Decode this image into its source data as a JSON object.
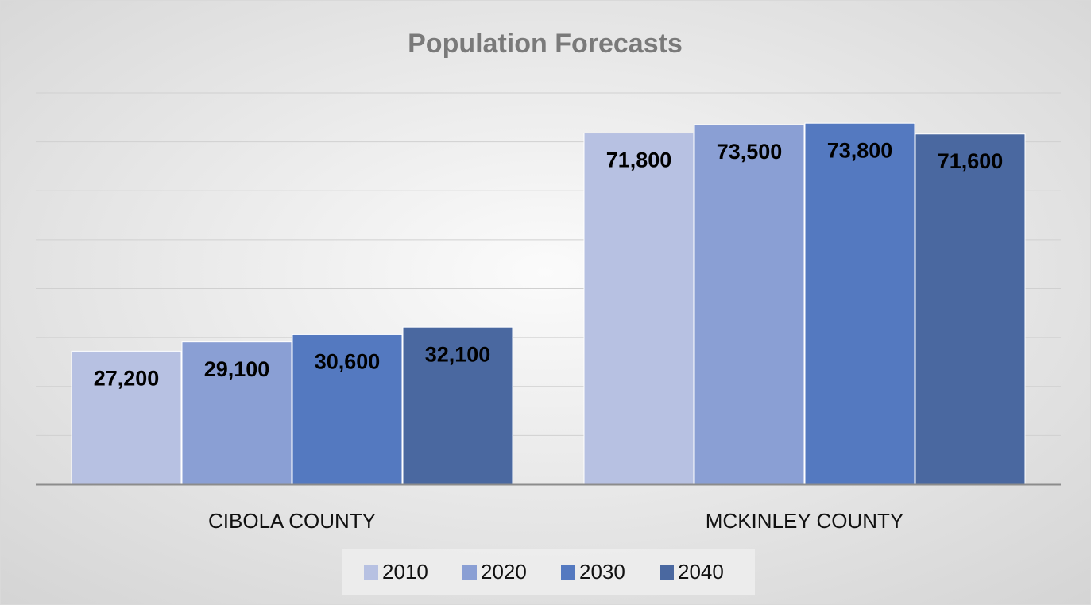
{
  "chart_data": {
    "type": "bar",
    "title": "Population Forecasts",
    "categories": [
      "CIBOLA COUNTY",
      "MCKINLEY COUNTY"
    ],
    "series": [
      {
        "name": "2010",
        "color": "#b7c1e2",
        "values": [
          27200,
          71800
        ],
        "value_labels": [
          "27,200",
          "71,800"
        ]
      },
      {
        "name": "2020",
        "color": "#8a9fd4",
        "values": [
          29100,
          73500
        ],
        "value_labels": [
          "29,100",
          "73,500"
        ]
      },
      {
        "name": "2030",
        "color": "#5479c0",
        "values": [
          30600,
          73800
        ],
        "value_labels": [
          "30,600",
          "73,800"
        ]
      },
      {
        "name": "2040",
        "color": "#4a68a0",
        "values": [
          32100,
          71600
        ],
        "value_labels": [
          "32,100",
          "71,600"
        ]
      }
    ],
    "ylim": [
      0,
      80000
    ],
    "yticks": [
      0,
      10000,
      20000,
      30000,
      40000,
      50000,
      60000,
      70000,
      80000
    ],
    "grid": true,
    "legend": "bottom"
  }
}
